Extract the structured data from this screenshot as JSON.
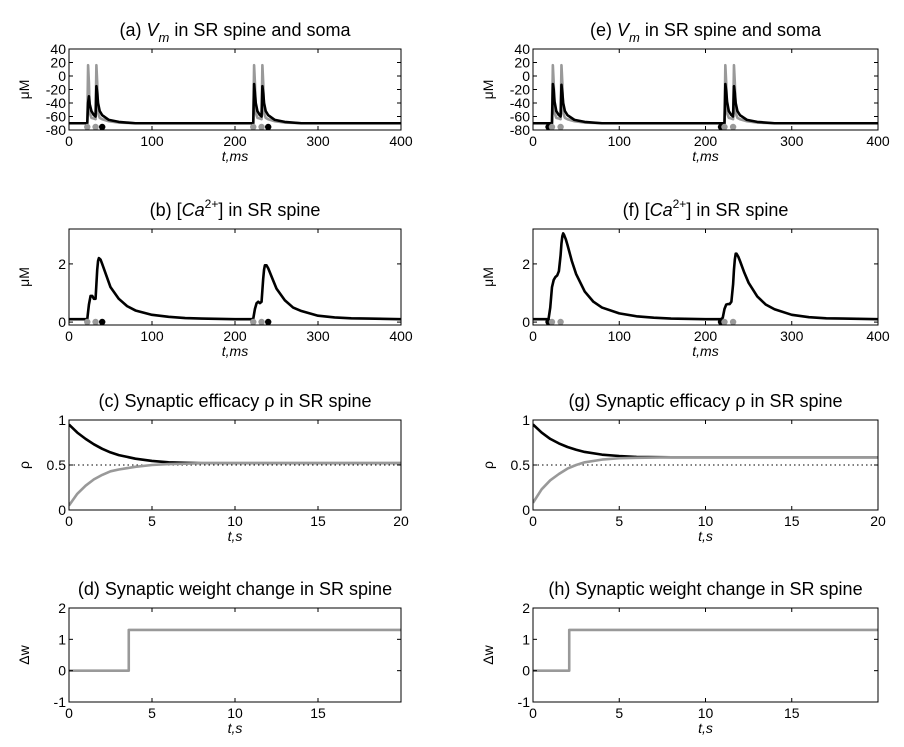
{
  "chart_data": [
    {
      "id": "a",
      "type": "line",
      "title": {
        "prefix": "(a) ",
        "var": "V",
        "sub": "m",
        "suffix": " in SR spine and soma"
      },
      "xlabel": "t,ms",
      "ylabel": "μM",
      "xlim": [
        0,
        400
      ],
      "ylim": [
        -80,
        40
      ],
      "xticks": [
        0,
        100,
        200,
        300,
        400
      ],
      "yticks": [
        -80,
        -60,
        -40,
        -20,
        0,
        20,
        40
      ],
      "series": [
        {
          "color": "#999999",
          "x": [
            0,
            22,
            23,
            24,
            25,
            27,
            30,
            32,
            33,
            34,
            35,
            37,
            40,
            48,
            60,
            80,
            120,
            160,
            200,
            220,
            222,
            223,
            224,
            225,
            227,
            230,
            232,
            233,
            234,
            235,
            237,
            240,
            248,
            260,
            280,
            320,
            360,
            400
          ],
          "y": [
            -70,
            -70,
            16,
            -10,
            -55,
            -62,
            -63,
            -64,
            16,
            -10,
            -55,
            -62,
            -64,
            -67,
            -69,
            -70,
            -70,
            -70,
            -70,
            -70,
            -70,
            16,
            -10,
            -55,
            -62,
            -63,
            -64,
            16,
            -10,
            -55,
            -62,
            -64,
            -67,
            -69,
            -70,
            -70,
            -70,
            -70
          ]
        },
        {
          "color": "#000000",
          "x": [
            0,
            22,
            23,
            24,
            25,
            27,
            30,
            32,
            33,
            34,
            35,
            37,
            40,
            48,
            60,
            80,
            120,
            160,
            200,
            220,
            222,
            223,
            224,
            225,
            227,
            230,
            232,
            233,
            234,
            235,
            237,
            240,
            248,
            260,
            280,
            320,
            360,
            400
          ],
          "y": [
            -70,
            -70,
            -40,
            -30,
            -42,
            -52,
            -58,
            -60,
            -15,
            -25,
            -40,
            -52,
            -58,
            -65,
            -68,
            -70,
            -70,
            -70,
            -70,
            -70,
            -70,
            -12,
            -25,
            -40,
            -52,
            -58,
            -60,
            -15,
            -25,
            -40,
            -52,
            -58,
            -65,
            -68,
            -70,
            -70,
            -70,
            -70
          ]
        }
      ],
      "markers": [
        {
          "x": 22,
          "color": "#999999"
        },
        {
          "x": 32,
          "color": "#999999"
        },
        {
          "x": 40,
          "color": "#000000"
        },
        {
          "x": 222,
          "color": "#999999"
        },
        {
          "x": 232,
          "color": "#999999"
        },
        {
          "x": 240,
          "color": "#000000"
        }
      ]
    },
    {
      "id": "b",
      "type": "line",
      "title": {
        "prefix": "(b)  [",
        "var": "Ca",
        "sup": "2+",
        "suffix": "] in SR spine"
      },
      "xlabel": "t,ms",
      "ylabel": "μM",
      "xlim": [
        0,
        400
      ],
      "ylim": [
        -0.1,
        3.2
      ],
      "xticks": [
        0,
        100,
        200,
        300,
        400
      ],
      "yticks": [
        0,
        2
      ],
      "series": [
        {
          "color": "#000000",
          "x": [
            0,
            22,
            24,
            26,
            28,
            30,
            32,
            33,
            34,
            35,
            36,
            38,
            40,
            45,
            50,
            60,
            70,
            80,
            100,
            120,
            140,
            160,
            200,
            220,
            222,
            224,
            226,
            228,
            230,
            232,
            233,
            234,
            235,
            236,
            238,
            240,
            245,
            250,
            260,
            270,
            280,
            300,
            320,
            340,
            360,
            400
          ],
          "y": [
            0.1,
            0.1,
            0.6,
            0.9,
            0.9,
            0.8,
            0.8,
            1.3,
            1.8,
            2.1,
            2.2,
            2.15,
            2.0,
            1.6,
            1.2,
            0.8,
            0.55,
            0.4,
            0.25,
            0.18,
            0.14,
            0.12,
            0.1,
            0.1,
            0.12,
            0.45,
            0.65,
            0.7,
            0.65,
            0.7,
            1.1,
            1.5,
            1.8,
            1.95,
            1.95,
            1.85,
            1.5,
            1.15,
            0.75,
            0.5,
            0.38,
            0.22,
            0.16,
            0.13,
            0.12,
            0.1
          ]
        }
      ],
      "markers": [
        {
          "x": 22,
          "color": "#999999"
        },
        {
          "x": 32,
          "color": "#999999"
        },
        {
          "x": 40,
          "color": "#000000"
        },
        {
          "x": 222,
          "color": "#999999"
        },
        {
          "x": 232,
          "color": "#999999"
        },
        {
          "x": 240,
          "color": "#000000"
        }
      ]
    },
    {
      "id": "c",
      "type": "line",
      "title": {
        "prefix": "(c) Synaptic efficacy ρ in SR spine"
      },
      "xlabel": "t,s",
      "ylabel": "ρ",
      "xlim": [
        0,
        20
      ],
      "ylim": [
        0,
        1
      ],
      "xticks": [
        0,
        5,
        10,
        15,
        20
      ],
      "yticks": [
        0,
        0.5,
        1
      ],
      "ref_line": 0.5,
      "series": [
        {
          "color": "#000000",
          "x": [
            0,
            0.5,
            1,
            1.5,
            2,
            2.5,
            3,
            4,
            5,
            6,
            7,
            8,
            10,
            12,
            15,
            20
          ],
          "y": [
            0.95,
            0.86,
            0.79,
            0.73,
            0.68,
            0.64,
            0.61,
            0.57,
            0.545,
            0.53,
            0.525,
            0.52,
            0.52,
            0.52,
            0.52,
            0.52
          ]
        },
        {
          "color": "#999999",
          "x": [
            0,
            0.5,
            1,
            1.5,
            2,
            2.5,
            3,
            4,
            5,
            6,
            7,
            8,
            10,
            12,
            15,
            20
          ],
          "y": [
            0.05,
            0.18,
            0.27,
            0.34,
            0.39,
            0.43,
            0.45,
            0.48,
            0.5,
            0.51,
            0.515,
            0.52,
            0.52,
            0.52,
            0.52,
            0.52
          ]
        }
      ]
    },
    {
      "id": "d",
      "type": "line",
      "title": {
        "prefix": "(d) Synaptic weight change in SR spine"
      },
      "xlabel": "t,s",
      "ylabel": "Δw",
      "xlim": [
        0,
        20
      ],
      "ylim": [
        -1,
        2
      ],
      "xticks": [
        0,
        5,
        10,
        15
      ],
      "yticks": [
        -1,
        0,
        1,
        2
      ],
      "series": [
        {
          "color": "#999999",
          "x": [
            0,
            3.6,
            3.6,
            20
          ],
          "y": [
            0,
            0,
            1.3,
            1.3
          ]
        }
      ]
    },
    {
      "id": "e",
      "type": "line",
      "title": {
        "prefix": "(e) ",
        "var": "V",
        "sub": "m",
        "suffix": " in SR spine and soma"
      },
      "xlabel": "t,ms",
      "ylabel": "μM",
      "xlim": [
        0,
        400
      ],
      "ylim": [
        -80,
        40
      ],
      "xticks": [
        0,
        100,
        200,
        300,
        400
      ],
      "yticks": [
        -80,
        -60,
        -40,
        -20,
        0,
        20,
        40
      ],
      "series": [
        {
          "color": "#999999",
          "x": [
            0,
            22,
            23,
            24,
            25,
            27,
            30,
            32,
            33,
            34,
            35,
            37,
            40,
            48,
            60,
            80,
            120,
            160,
            200,
            220,
            222,
            223,
            224,
            225,
            227,
            230,
            232,
            233,
            234,
            235,
            237,
            240,
            248,
            260,
            280,
            320,
            360,
            400
          ],
          "y": [
            -70,
            -70,
            16,
            -10,
            -55,
            -62,
            -63,
            -64,
            16,
            -10,
            -55,
            -62,
            -64,
            -67,
            -69,
            -70,
            -70,
            -70,
            -70,
            -70,
            -70,
            16,
            -10,
            -55,
            -62,
            -63,
            -64,
            16,
            -10,
            -55,
            -62,
            -64,
            -67,
            -69,
            -70,
            -70,
            -70,
            -70
          ]
        },
        {
          "color": "#000000",
          "x": [
            0,
            22,
            23,
            24,
            25,
            27,
            30,
            32,
            33,
            34,
            35,
            37,
            40,
            48,
            60,
            80,
            120,
            160,
            200,
            220,
            222,
            223,
            224,
            225,
            227,
            230,
            232,
            233,
            234,
            235,
            237,
            240,
            248,
            260,
            280,
            320,
            360,
            400
          ],
          "y": [
            -70,
            -70,
            -12,
            -20,
            -38,
            -52,
            -58,
            -60,
            -13,
            -25,
            -40,
            -52,
            -58,
            -65,
            -68,
            -70,
            -70,
            -70,
            -70,
            -70,
            -70,
            -12,
            -22,
            -38,
            -52,
            -58,
            -60,
            -15,
            -25,
            -40,
            -52,
            -58,
            -65,
            -68,
            -70,
            -70,
            -70,
            -70
          ]
        }
      ],
      "markers": [
        {
          "x": 18,
          "color": "#000000"
        },
        {
          "x": 22,
          "color": "#999999"
        },
        {
          "x": 32,
          "color": "#999999"
        },
        {
          "x": 218,
          "color": "#000000"
        },
        {
          "x": 222,
          "color": "#999999"
        },
        {
          "x": 232,
          "color": "#999999"
        }
      ]
    },
    {
      "id": "f",
      "type": "line",
      "title": {
        "prefix": "(f) [",
        "var": "Ca",
        "sup": "2+",
        "suffix": "] in SR spine"
      },
      "xlabel": "t,ms",
      "ylabel": "μM",
      "xlim": [
        0,
        400
      ],
      "ylim": [
        -0.1,
        3.2
      ],
      "xticks": [
        0,
        100,
        200,
        300,
        400
      ],
      "yticks": [
        0,
        2
      ],
      "series": [
        {
          "color": "#000000",
          "x": [
            0,
            18,
            20,
            22,
            24,
            26,
            28,
            30,
            32,
            33,
            34,
            35,
            36,
            38,
            40,
            45,
            50,
            60,
            70,
            80,
            100,
            120,
            140,
            160,
            200,
            218,
            220,
            222,
            224,
            226,
            228,
            230,
            232,
            233,
            234,
            235,
            236,
            238,
            240,
            245,
            250,
            260,
            270,
            280,
            300,
            320,
            340,
            360,
            400
          ],
          "y": [
            0.1,
            0.1,
            0.5,
            1.2,
            1.45,
            1.55,
            1.6,
            1.75,
            2.3,
            2.7,
            2.95,
            3.05,
            3.0,
            2.85,
            2.65,
            2.1,
            1.65,
            1.05,
            0.7,
            0.5,
            0.3,
            0.2,
            0.15,
            0.12,
            0.1,
            0.1,
            0.15,
            0.45,
            0.6,
            0.62,
            0.62,
            0.7,
            1.3,
            1.8,
            2.15,
            2.35,
            2.35,
            2.25,
            2.1,
            1.7,
            1.35,
            0.88,
            0.6,
            0.44,
            0.25,
            0.17,
            0.13,
            0.12,
            0.1
          ]
        }
      ],
      "markers": [
        {
          "x": 18,
          "color": "#000000"
        },
        {
          "x": 22,
          "color": "#999999"
        },
        {
          "x": 32,
          "color": "#999999"
        },
        {
          "x": 218,
          "color": "#000000"
        },
        {
          "x": 222,
          "color": "#999999"
        },
        {
          "x": 232,
          "color": "#999999"
        }
      ]
    },
    {
      "id": "g",
      "type": "line",
      "title": {
        "prefix": "(g) Synaptic efficacy ρ in SR spine"
      },
      "xlabel": "t,s",
      "ylabel": "ρ",
      "xlim": [
        0,
        20
      ],
      "ylim": [
        0,
        1
      ],
      "xticks": [
        0,
        5,
        10,
        15,
        20
      ],
      "yticks": [
        0,
        0.5,
        1
      ],
      "ref_line": 0.5,
      "series": [
        {
          "color": "#000000",
          "x": [
            0,
            0.5,
            1,
            1.5,
            2,
            2.5,
            3,
            4,
            5,
            6,
            8,
            10,
            12,
            15,
            20
          ],
          "y": [
            0.95,
            0.86,
            0.79,
            0.74,
            0.7,
            0.67,
            0.645,
            0.615,
            0.6,
            0.59,
            0.585,
            0.585,
            0.585,
            0.585,
            0.585
          ]
        },
        {
          "color": "#999999",
          "x": [
            0,
            0.5,
            1,
            1.5,
            2,
            2.5,
            3,
            4,
            5,
            6,
            8,
            10,
            12,
            15,
            20
          ],
          "y": [
            0.08,
            0.23,
            0.33,
            0.4,
            0.46,
            0.5,
            0.53,
            0.56,
            0.575,
            0.58,
            0.585,
            0.585,
            0.585,
            0.585,
            0.585
          ]
        }
      ]
    },
    {
      "id": "h",
      "type": "line",
      "title": {
        "prefix": "(h) Synaptic weight change in SR spine"
      },
      "xlabel": "t,s",
      "ylabel": "Δw",
      "xlim": [
        0,
        20
      ],
      "ylim": [
        -1,
        2
      ],
      "xticks": [
        0,
        5,
        10,
        15
      ],
      "yticks": [
        -1,
        0,
        1,
        2
      ],
      "series": [
        {
          "color": "#999999",
          "x": [
            0,
            2.1,
            2.1,
            20
          ],
          "y": [
            0,
            0,
            1.3,
            1.3
          ]
        }
      ]
    }
  ]
}
